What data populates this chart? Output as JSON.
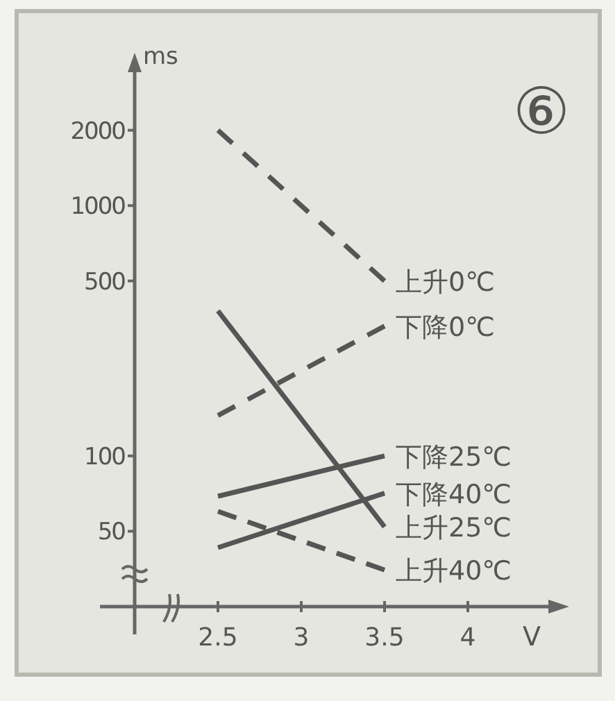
{
  "chart_data": {
    "type": "line",
    "xlabel": "V",
    "ylabel": "ms",
    "annotations": [
      "⑥"
    ],
    "log": "y",
    "grid": false,
    "xlim": [
      2.0,
      4.5
    ],
    "xticks": [
      2.5,
      3,
      3.5,
      4
    ],
    "ylim": [
      25,
      3500
    ],
    "yticks": [
      50,
      100,
      500,
      1000,
      2000
    ],
    "x": [
      2.5,
      3.5
    ],
    "series": [
      {
        "name": "上升0℃",
        "color": "#555555",
        "line_style": "dashed",
        "values": [
          2000,
          500
        ]
      },
      {
        "name": "下降0℃",
        "color": "#555555",
        "line_style": "dashed",
        "values": [
          145,
          330
        ]
      },
      {
        "name": "下降25℃",
        "color": "#555555",
        "line_style": "solid",
        "values": [
          69,
          100
        ]
      },
      {
        "name": "下降40℃",
        "color": "#555555",
        "line_style": "solid",
        "values": [
          43,
          71
        ]
      },
      {
        "name": "上升25℃",
        "color": "#555555",
        "line_style": "solid",
        "values": [
          380,
          52
        ]
      },
      {
        "name": "上升40℃",
        "color": "#555555",
        "line_style": "dashed",
        "values": [
          60,
          35
        ]
      }
    ]
  }
}
